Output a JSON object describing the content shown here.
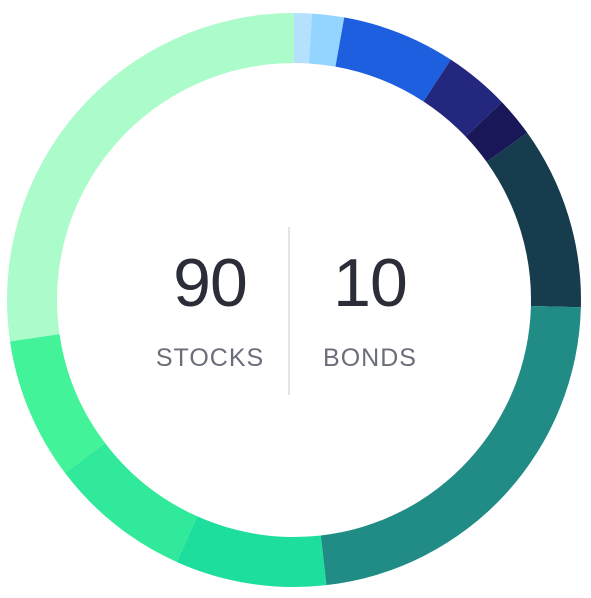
{
  "allocation": {
    "stocks": {
      "value": "90",
      "label": "STOCKS"
    },
    "bonds": {
      "value": "10",
      "label": "BONDS"
    }
  },
  "chart_data": {
    "type": "pie",
    "variant": "donut",
    "total_percent": 100,
    "start_angle_deg": 0,
    "direction": "clockwise",
    "segments": [
      {
        "value": 1.0,
        "color": "#b5e1ff"
      },
      {
        "value": 1.8,
        "color": "#93d5ff"
      },
      {
        "value": 6.4,
        "color": "#1e5fe0"
      },
      {
        "value": 3.7,
        "color": "#23287e"
      },
      {
        "value": 2.2,
        "color": "#191758"
      },
      {
        "value": 10.3,
        "color": "#163c4e"
      },
      {
        "value": 22.8,
        "color": "#218c86"
      },
      {
        "value": 8.5,
        "color": "#1dde9c"
      },
      {
        "value": 8.0,
        "color": "#30e99a"
      },
      {
        "value": 8.0,
        "color": "#42f39a"
      },
      {
        "value": 27.3,
        "color": "#abfcca"
      }
    ]
  }
}
